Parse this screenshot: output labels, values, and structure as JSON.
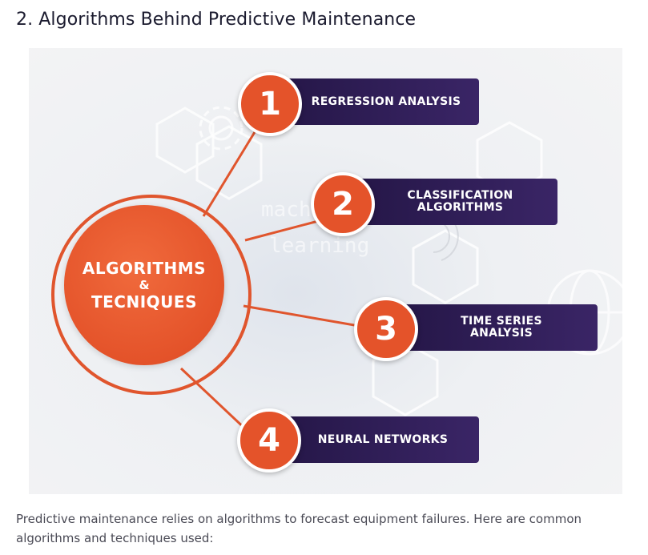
{
  "article": {
    "heading": "2. Algorithms Behind Predictive Maintenance",
    "caption": "Predictive maintenance relies on algorithms to forecast equipment failures. Here are common algorithms and techniques used:"
  },
  "infographic": {
    "hub": {
      "line1": "ALGORITHMS",
      "amp": "&",
      "line2": "TECNIQUES"
    },
    "background_text": [
      "machine",
      "learning"
    ],
    "accent_color": "#e4532a",
    "bar_color": "#2b1a52",
    "items": [
      {
        "number": "1",
        "label": "REGRESSION ANALYSIS"
      },
      {
        "number": "2",
        "label": "CLASSIFICATION ALGORITHMS",
        "label_line1": "CLASSIFICATION",
        "label_line2": "ALGORITHMS"
      },
      {
        "number": "3",
        "label": "TIME SERIES ANALYSIS",
        "label_line1": "TIME SERIES",
        "label_line2": "ANALYSIS"
      },
      {
        "number": "4",
        "label": "NEURAL NETWORKS"
      }
    ]
  }
}
